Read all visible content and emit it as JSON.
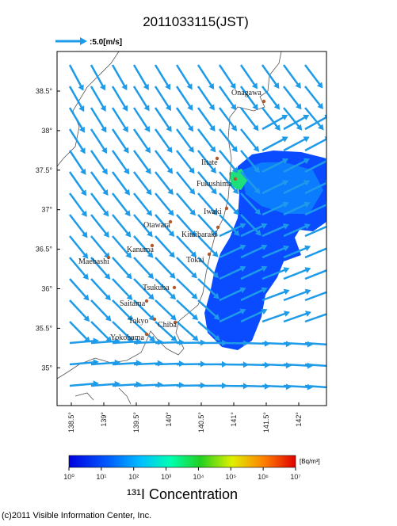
{
  "title": "2011033115(JST)",
  "wind_scale": {
    "label": ":5.0[m/s]"
  },
  "map": {
    "lat_ticks": [
      {
        "value": 38.5,
        "label": "38.5°"
      },
      {
        "value": 38,
        "label": "38°"
      },
      {
        "value": 37.5,
        "label": "37.5°"
      },
      {
        "value": 37,
        "label": "37°"
      },
      {
        "value": 36.5,
        "label": "36.5°"
      },
      {
        "value": 36,
        "label": "36°"
      },
      {
        "value": 35.5,
        "label": "35.5°"
      },
      {
        "value": 35,
        "label": "35°"
      }
    ],
    "lon_ticks": [
      {
        "value": 138.5,
        "label": "138.5°"
      },
      {
        "value": 139,
        "label": "139°"
      },
      {
        "value": 139.5,
        "label": "139.5°"
      },
      {
        "value": 140,
        "label": "140°"
      },
      {
        "value": 140.5,
        "label": "140.5°"
      },
      {
        "value": 141,
        "label": "141°"
      },
      {
        "value": 141.5,
        "label": "141.5°"
      },
      {
        "value": 142,
        "label": "142°"
      }
    ],
    "cities": [
      "Onagawa",
      "Iitate",
      "Fukushima",
      "Iwaki",
      "Otawara",
      "Kitaibaraki",
      "Kanuma",
      "Tokai",
      "Maebashi",
      "Tsukuba",
      "Saitama",
      "Tokyo",
      "Chiba",
      "Yokohama"
    ]
  },
  "colorbar": {
    "unit": "[Bq/m³]",
    "title": "¹³¹I Concentration",
    "ticks": [
      {
        "value": 0,
        "label": "10⁰"
      },
      {
        "value": 1,
        "label": "10¹"
      },
      {
        "value": 2,
        "label": "10²"
      },
      {
        "value": 3,
        "label": "10³"
      },
      {
        "value": 4,
        "label": "10⁴"
      },
      {
        "value": 5,
        "label": "10⁵"
      },
      {
        "value": 6,
        "label": "10⁶"
      },
      {
        "value": 7,
        "label": "10⁷"
      }
    ]
  },
  "footer": "(c)2011 Visible Information Center, Inc."
}
